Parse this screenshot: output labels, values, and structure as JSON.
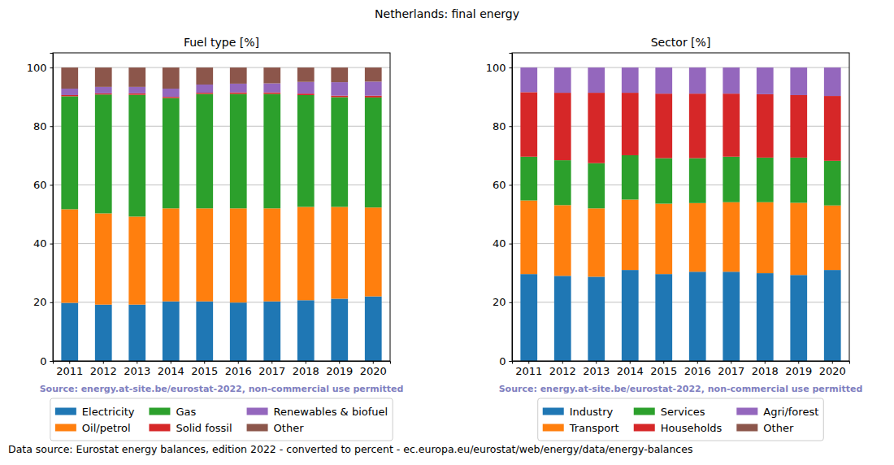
{
  "title": "Netherlands: final energy",
  "footnote": "Data source: Eurostat energy balances, edition 2022 - converted to percent - ec.europa.eu/eurostat/web/energy/data/energy-balances",
  "chart_data": [
    {
      "type": "bar",
      "stacked": true,
      "grid": true,
      "legend": "bottom",
      "title": "Fuel type [%]",
      "annotation": "Source: energy.at-site.be/eurostat-2022, non-commercial use permitted",
      "categories": [
        "2011",
        "2012",
        "2013",
        "2014",
        "2015",
        "2016",
        "2017",
        "2018",
        "2019",
        "2020"
      ],
      "ylim": [
        0,
        105
      ],
      "yticks": [
        0,
        20,
        40,
        60,
        80,
        100
      ],
      "series": [
        {
          "name": "Electricity",
          "color": "#1f77b4",
          "values": [
            19.8,
            19.2,
            19.2,
            20.3,
            20.3,
            19.9,
            20.3,
            20.7,
            21.2,
            22.0
          ]
        },
        {
          "name": "Oil/petrol",
          "color": "#ff7f0e",
          "values": [
            31.9,
            31.1,
            30.0,
            31.7,
            31.7,
            32.1,
            31.7,
            31.8,
            31.3,
            30.3
          ]
        },
        {
          "name": "Gas",
          "color": "#2ca02c",
          "values": [
            38.5,
            40.5,
            41.5,
            37.6,
            39.0,
            39.0,
            39.0,
            38.1,
            37.4,
            37.5
          ]
        },
        {
          "name": "Solid fossil",
          "color": "#d62728",
          "values": [
            0.4,
            0.4,
            0.5,
            0.4,
            0.4,
            0.5,
            0.5,
            0.5,
            0.5,
            0.6
          ]
        },
        {
          "name": "Renewables & biofuel",
          "color": "#9467bd",
          "values": [
            2.2,
            2.2,
            2.2,
            2.8,
            2.8,
            3.0,
            3.1,
            4.0,
            4.6,
            4.8
          ]
        },
        {
          "name": "Other",
          "color": "#8c564b",
          "values": [
            7.2,
            6.6,
            6.6,
            7.2,
            5.8,
            5.5,
            5.4,
            4.9,
            5.0,
            4.8
          ]
        }
      ]
    },
    {
      "type": "bar",
      "stacked": true,
      "grid": true,
      "legend": "bottom",
      "title": "Sector [%]",
      "annotation": "Source: energy.at-site.be/eurostat-2022, non-commercial use permitted",
      "categories": [
        "2011",
        "2012",
        "2013",
        "2014",
        "2015",
        "2016",
        "2017",
        "2018",
        "2019",
        "2020"
      ],
      "ylim": [
        0,
        105
      ],
      "yticks": [
        0,
        20,
        40,
        60,
        80,
        100
      ],
      "series": [
        {
          "name": "Industry",
          "color": "#1f77b4",
          "values": [
            29.6,
            29.0,
            28.7,
            31.0,
            29.6,
            30.4,
            30.4,
            29.9,
            29.3,
            31.0
          ]
        },
        {
          "name": "Transport",
          "color": "#ff7f0e",
          "values": [
            25.1,
            24.1,
            23.3,
            24.0,
            24.0,
            23.4,
            23.7,
            24.2,
            24.6,
            22.0
          ]
        },
        {
          "name": "Services",
          "color": "#2ca02c",
          "values": [
            14.9,
            15.3,
            15.4,
            15.1,
            15.5,
            15.3,
            15.5,
            15.2,
            15.4,
            15.2
          ]
        },
        {
          "name": "Households",
          "color": "#d62728",
          "values": [
            22.0,
            23.0,
            24.0,
            21.3,
            22.0,
            22.0,
            21.5,
            21.6,
            21.3,
            22.1
          ]
        },
        {
          "name": "Agri/forest",
          "color": "#9467bd",
          "values": [
            8.4,
            8.6,
            8.6,
            8.6,
            8.9,
            8.9,
            8.9,
            9.1,
            9.4,
            9.7
          ]
        },
        {
          "name": "Other",
          "color": "#8c564b",
          "values": [
            0,
            0,
            0,
            0,
            0,
            0,
            0,
            0,
            0,
            0
          ]
        }
      ]
    }
  ]
}
